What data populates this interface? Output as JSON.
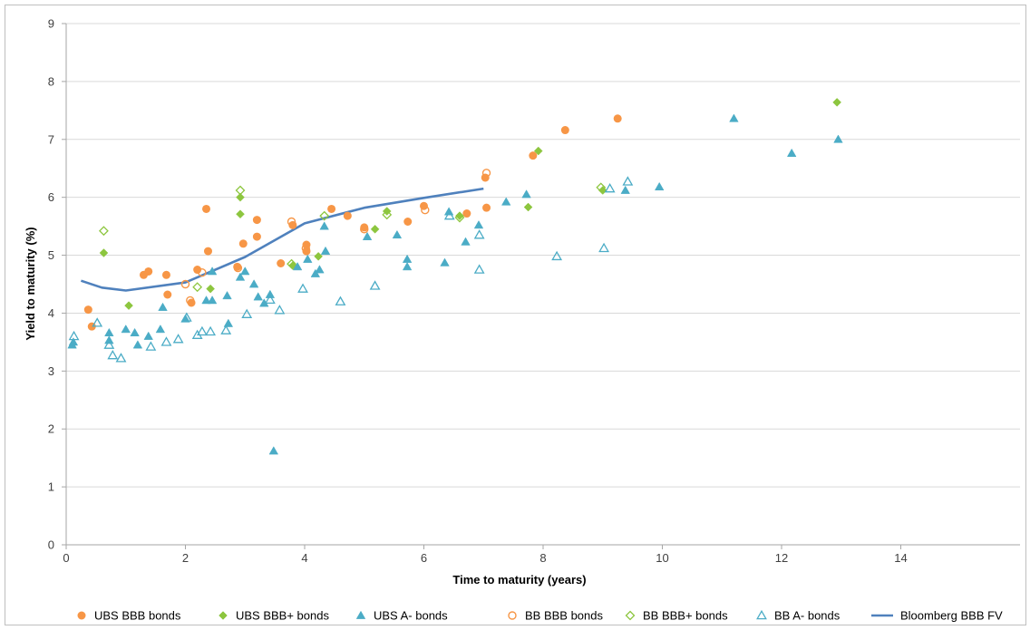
{
  "chart_data": {
    "type": "scatter",
    "title": "",
    "xlabel": "Time to maturity (years)",
    "ylabel": "Yield to maturity (%)",
    "xlim": [
      0,
      16
    ],
    "ylim": [
      0,
      9
    ],
    "x_ticks": [
      "0",
      "2",
      "4",
      "6",
      "8",
      "10",
      "12",
      "14"
    ],
    "y_ticks": [
      "0",
      "1",
      "2",
      "3",
      "4",
      "5",
      "6",
      "7",
      "8",
      "9"
    ],
    "grid": "horizontal",
    "legend_position": "bottom",
    "series": [
      {
        "name": "UBS BBB bonds",
        "marker": "circle-filled",
        "color": "#F79646",
        "points": [
          [
            0.37,
            4.06
          ],
          [
            0.43,
            3.77
          ],
          [
            1.3,
            4.66
          ],
          [
            1.38,
            4.72
          ],
          [
            1.68,
            4.66
          ],
          [
            1.7,
            4.32
          ],
          [
            2.1,
            4.18
          ],
          [
            2.2,
            4.75
          ],
          [
            2.35,
            5.8
          ],
          [
            2.38,
            5.07
          ],
          [
            2.87,
            4.8
          ],
          [
            2.97,
            5.2
          ],
          [
            3.2,
            5.32
          ],
          [
            3.2,
            5.61
          ],
          [
            3.6,
            4.86
          ],
          [
            3.8,
            5.52
          ],
          [
            4.03,
            5.07
          ],
          [
            4.03,
            5.18
          ],
          [
            4.45,
            5.8
          ],
          [
            4.72,
            5.68
          ],
          [
            5.0,
            5.48
          ],
          [
            5.73,
            5.58
          ],
          [
            6.0,
            5.85
          ],
          [
            6.72,
            5.72
          ],
          [
            7.03,
            6.34
          ],
          [
            7.05,
            5.82
          ],
          [
            7.83,
            6.72
          ],
          [
            8.37,
            7.16
          ],
          [
            9.25,
            7.36
          ]
        ]
      },
      {
        "name": "UBS BBB+ bonds",
        "marker": "diamond-filled",
        "color": "#8DC63F",
        "points": [
          [
            0.63,
            5.04
          ],
          [
            1.05,
            4.13
          ],
          [
            2.42,
            4.42
          ],
          [
            2.92,
            6.0
          ],
          [
            2.92,
            5.71
          ],
          [
            3.8,
            4.82
          ],
          [
            4.23,
            4.98
          ],
          [
            5.18,
            5.45
          ],
          [
            5.38,
            5.76
          ],
          [
            6.6,
            5.68
          ],
          [
            7.75,
            5.83
          ],
          [
            7.92,
            6.8
          ],
          [
            9.0,
            6.12
          ],
          [
            12.93,
            7.64
          ]
        ]
      },
      {
        "name": "UBS A- bonds",
        "marker": "triangle-filled",
        "color": "#4BACC6",
        "points": [
          [
            0.1,
            3.45
          ],
          [
            0.12,
            3.5
          ],
          [
            0.72,
            3.66
          ],
          [
            0.72,
            3.53
          ],
          [
            1.0,
            3.72
          ],
          [
            1.15,
            3.66
          ],
          [
            1.2,
            3.45
          ],
          [
            1.38,
            3.6
          ],
          [
            1.58,
            3.72
          ],
          [
            1.62,
            4.1
          ],
          [
            2.0,
            3.9
          ],
          [
            2.35,
            4.22
          ],
          [
            2.45,
            4.22
          ],
          [
            2.45,
            4.72
          ],
          [
            2.7,
            4.3
          ],
          [
            2.72,
            3.82
          ],
          [
            2.92,
            4.62
          ],
          [
            3.0,
            4.72
          ],
          [
            3.15,
            4.5
          ],
          [
            3.22,
            4.28
          ],
          [
            3.32,
            4.17
          ],
          [
            3.42,
            4.32
          ],
          [
            3.48,
            1.62
          ],
          [
            3.88,
            4.8
          ],
          [
            4.05,
            4.93
          ],
          [
            4.18,
            4.68
          ],
          [
            4.25,
            4.75
          ],
          [
            4.33,
            5.5
          ],
          [
            4.35,
            5.07
          ],
          [
            5.05,
            5.32
          ],
          [
            5.55,
            5.35
          ],
          [
            5.72,
            4.8
          ],
          [
            5.72,
            4.93
          ],
          [
            6.35,
            4.87
          ],
          [
            6.42,
            5.75
          ],
          [
            6.7,
            5.23
          ],
          [
            6.92,
            5.52
          ],
          [
            7.38,
            5.92
          ],
          [
            7.72,
            6.05
          ],
          [
            9.38,
            6.12
          ],
          [
            9.95,
            6.18
          ],
          [
            11.2,
            7.36
          ],
          [
            12.17,
            6.76
          ],
          [
            12.95,
            7.0
          ]
        ]
      },
      {
        "name": "BB BBB bonds",
        "marker": "circle-open",
        "color": "#F79646",
        "points": [
          [
            2.0,
            4.5
          ],
          [
            2.08,
            4.22
          ],
          [
            2.28,
            4.7
          ],
          [
            2.88,
            4.78
          ],
          [
            3.78,
            5.58
          ],
          [
            4.02,
            5.12
          ],
          [
            5.0,
            5.45
          ],
          [
            6.02,
            5.78
          ],
          [
            7.05,
            6.42
          ]
        ]
      },
      {
        "name": "BB BBB+ bonds",
        "marker": "diamond-open",
        "color": "#8DC63F",
        "points": [
          [
            0.63,
            5.42
          ],
          [
            2.2,
            4.45
          ],
          [
            2.92,
            6.12
          ],
          [
            3.78,
            4.85
          ],
          [
            4.33,
            5.68
          ],
          [
            5.38,
            5.7
          ],
          [
            6.6,
            5.65
          ],
          [
            8.97,
            6.17
          ]
        ]
      },
      {
        "name": "BB A- bonds",
        "marker": "triangle-open",
        "color": "#4BACC6",
        "points": [
          [
            0.13,
            3.6
          ],
          [
            0.52,
            3.83
          ],
          [
            0.72,
            3.45
          ],
          [
            0.78,
            3.27
          ],
          [
            0.92,
            3.22
          ],
          [
            1.42,
            3.42
          ],
          [
            1.68,
            3.5
          ],
          [
            1.88,
            3.55
          ],
          [
            2.02,
            3.92
          ],
          [
            2.2,
            3.62
          ],
          [
            2.28,
            3.68
          ],
          [
            2.42,
            3.68
          ],
          [
            2.68,
            3.7
          ],
          [
            3.03,
            3.98
          ],
          [
            3.42,
            4.23
          ],
          [
            3.58,
            4.05
          ],
          [
            3.97,
            4.42
          ],
          [
            4.6,
            4.2
          ],
          [
            5.18,
            4.47
          ],
          [
            6.43,
            5.68
          ],
          [
            6.93,
            4.75
          ],
          [
            6.93,
            5.35
          ],
          [
            8.23,
            4.98
          ],
          [
            9.02,
            5.12
          ],
          [
            9.12,
            6.15
          ],
          [
            9.42,
            6.27
          ]
        ]
      },
      {
        "name": "Bloomberg BBB FV",
        "marker": "line",
        "color": "#4F81BD",
        "points": [
          [
            0.25,
            4.56
          ],
          [
            0.6,
            4.44
          ],
          [
            1.0,
            4.39
          ],
          [
            2.0,
            4.53
          ],
          [
            3.0,
            4.97
          ],
          [
            4.0,
            5.55
          ],
          [
            5.0,
            5.82
          ],
          [
            6.0,
            5.99
          ],
          [
            7.0,
            6.15
          ]
        ]
      }
    ]
  }
}
